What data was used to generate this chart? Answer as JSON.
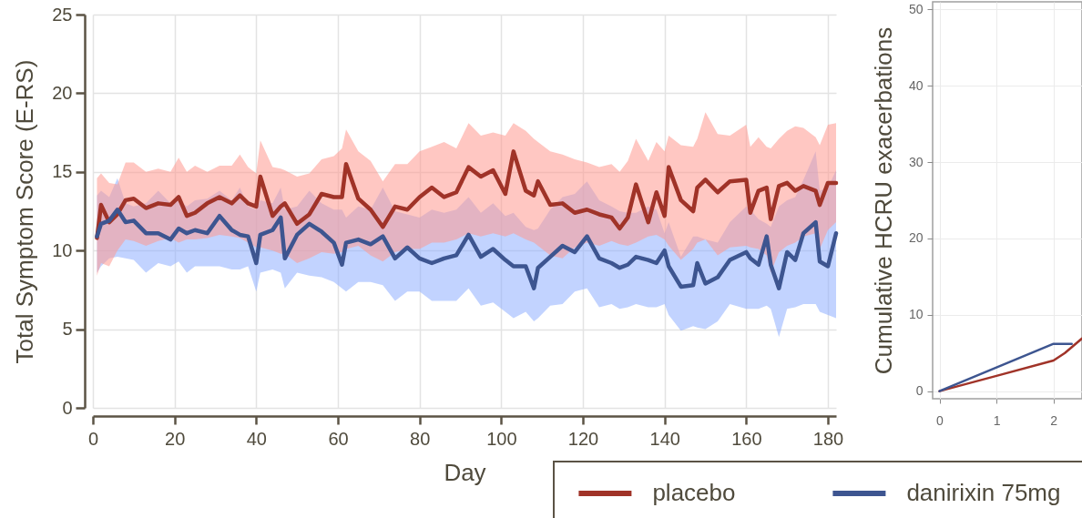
{
  "chart_data": [
    {
      "type": "line",
      "xlabel": "Day",
      "ylabel": "Total Symptom Score (E-RS)",
      "x": [
        1,
        2,
        4,
        6,
        8,
        10,
        13,
        16,
        19,
        21,
        23,
        25,
        28,
        31,
        34,
        36,
        38,
        40,
        41,
        44,
        46,
        47,
        50,
        53,
        56,
        59,
        61,
        62,
        65,
        68,
        71,
        74,
        77,
        80,
        83,
        86,
        89,
        92,
        95,
        98,
        101,
        103,
        106,
        108,
        109,
        112,
        115,
        118,
        121,
        124,
        127,
        129,
        131,
        133,
        136,
        138,
        140,
        141,
        144,
        147,
        148,
        150,
        153,
        156,
        160,
        161,
        163,
        165,
        166,
        168,
        170,
        172,
        174,
        177,
        178,
        180,
        182
      ],
      "series": [
        {
          "name": "placebo",
          "color": "#a03328",
          "values": [
            10.8,
            12.9,
            11.8,
            12.3,
            13.2,
            13.3,
            12.7,
            13.0,
            12.9,
            13.4,
            12.2,
            12.4,
            13.0,
            13.4,
            13.0,
            13.5,
            13.0,
            12.8,
            14.7,
            12.2,
            12.8,
            13.0,
            11.7,
            12.3,
            13.6,
            13.4,
            13.4,
            15.5,
            13.3,
            12.6,
            11.5,
            12.8,
            12.6,
            13.4,
            14.0,
            13.4,
            13.7,
            15.3,
            14.7,
            15.1,
            13.6,
            16.3,
            13.8,
            13.5,
            14.4,
            12.9,
            13.0,
            12.4,
            12.6,
            12.3,
            12.1,
            11.4,
            12.1,
            14.2,
            11.8,
            13.7,
            12.2,
            15.3,
            13.2,
            12.5,
            14.0,
            14.5,
            13.7,
            14.4,
            14.5,
            12.4,
            13.8,
            14.0,
            12.0,
            14.1,
            14.3,
            13.8,
            14.1,
            13.8,
            12.9,
            14.3,
            14.3
          ],
          "lower": [
            8.4,
            9.2,
            9.0,
            10.0,
            10.7,
            10.6,
            10.3,
            10.6,
            10.8,
            10.5,
            10.7,
            10.7,
            10.8,
            11.0,
            10.9,
            10.8,
            10.5,
            10.2,
            10.2,
            10.0,
            9.8,
            9.8,
            9.2,
            9.5,
            9.9,
            9.8,
            9.9,
            10.1,
            10.3,
            9.7,
            9.3,
            9.9,
            10.1,
            10.1,
            10.5,
            10.5,
            10.7,
            11.1,
            10.9,
            11.1,
            10.9,
            11.1,
            10.7,
            10.5,
            10.3,
            9.7,
            9.5,
            10.2,
            10.5,
            10.3,
            10.6,
            10.4,
            10.3,
            10.5,
            10.9,
            11.0,
            10.7,
            10.3,
            9.4,
            10.1,
            10.5,
            10.7,
            9.7,
            10.2,
            10.3,
            10.2,
            10.1,
            9.7,
            8.6,
            9.9,
            10.3,
            10.5,
            10.9,
            11.1,
            10.1,
            11.3,
            11.8
          ],
          "upper": [
            14.6,
            14.9,
            14.3,
            14.2,
            15.6,
            15.6,
            15.0,
            15.2,
            15.0,
            15.9,
            15.0,
            15.4,
            15.0,
            15.4,
            15.4,
            16.1,
            15.3,
            14.9,
            17.0,
            15.3,
            15.2,
            15.1,
            14.7,
            14.9,
            15.8,
            16.0,
            16.5,
            17.7,
            16.3,
            15.7,
            14.4,
            15.5,
            15.5,
            16.3,
            16.6,
            16.9,
            16.5,
            18.1,
            17.3,
            17.5,
            17.3,
            18.1,
            17.6,
            17.1,
            16.9,
            16.3,
            16.1,
            15.8,
            15.6,
            15.3,
            15.5,
            15.0,
            15.7,
            17.1,
            15.7,
            16.9,
            16.3,
            17.3,
            16.7,
            16.6,
            17.1,
            18.8,
            17.4,
            17.3,
            18.0,
            16.6,
            17.2,
            16.6,
            16.5,
            17.1,
            17.6,
            17.9,
            17.8,
            17.2,
            16.7,
            18.0,
            18.1
          ]
        },
        {
          "name": "danirixin 75mg",
          "color": "#3d5590",
          "values": [
            10.9,
            11.7,
            11.9,
            12.6,
            11.8,
            11.9,
            11.1,
            11.1,
            10.7,
            11.4,
            11.1,
            11.3,
            11.1,
            12.2,
            11.3,
            11.0,
            10.9,
            9.2,
            11.0,
            11.3,
            12.1,
            9.5,
            11.0,
            11.7,
            11.2,
            10.5,
            9.1,
            10.5,
            10.7,
            10.4,
            10.9,
            9.5,
            10.2,
            9.5,
            9.2,
            9.5,
            9.7,
            11.0,
            9.6,
            10.1,
            9.4,
            9.0,
            9.0,
            7.6,
            8.9,
            9.6,
            10.3,
            9.9,
            10.9,
            9.5,
            9.2,
            8.9,
            9.1,
            9.6,
            9.4,
            9.2,
            10.0,
            9.0,
            7.7,
            7.8,
            9.2,
            7.9,
            8.3,
            9.4,
            9.9,
            9.5,
            9.1,
            10.9,
            9.1,
            7.6,
            9.9,
            9.4,
            11.1,
            11.8,
            9.3,
            9.0,
            11.1
          ],
          "lower": [
            8.6,
            9.0,
            9.5,
            9.6,
            9.5,
            9.4,
            8.6,
            9.2,
            9.0,
            9.3,
            8.6,
            9.0,
            9.0,
            9.0,
            8.8,
            8.8,
            9.0,
            7.4,
            8.6,
            8.8,
            8.6,
            7.6,
            8.6,
            8.4,
            8.3,
            8.0,
            7.6,
            7.4,
            8.0,
            8.0,
            7.8,
            6.8,
            7.4,
            7.4,
            6.8,
            6.8,
            6.8,
            7.6,
            6.5,
            6.7,
            6.1,
            5.7,
            6.1,
            5.5,
            5.7,
            6.5,
            6.6,
            7.4,
            7.6,
            6.4,
            6.6,
            6.3,
            6.4,
            6.6,
            6.4,
            6.4,
            6.6,
            5.9,
            4.9,
            5.2,
            5.1,
            5.0,
            5.5,
            6.6,
            6.3,
            6.3,
            6.3,
            6.5,
            6.3,
            4.5,
            6.3,
            6.4,
            6.6,
            6.6,
            6.1,
            5.9,
            5.7
          ],
          "upper": [
            13.5,
            13.8,
            13.4,
            14.6,
            13.0,
            12.8,
            13.0,
            13.8,
            13.0,
            13.2,
            12.8,
            13.2,
            13.3,
            13.8,
            13.2,
            14.0,
            12.8,
            12.6,
            13.2,
            13.0,
            14.0,
            12.6,
            12.8,
            13.8,
            13.0,
            12.6,
            12.6,
            12.1,
            12.8,
            12.6,
            14.0,
            12.5,
            12.3,
            12.1,
            12.6,
            12.4,
            12.6,
            13.4,
            12.4,
            13.0,
            12.2,
            12.4,
            11.5,
            11.3,
            11.4,
            12.6,
            13.4,
            13.6,
            14.4,
            13.2,
            12.8,
            12.5,
            12.4,
            12.4,
            12.8,
            12.6,
            11.1,
            11.8,
            9.6,
            10.9,
            10.9,
            10.7,
            10.5,
            11.8,
            12.8,
            12.6,
            12.0,
            11.7,
            11.5,
            12.8,
            13.2,
            13.4,
            14.5,
            16.3,
            13.8,
            14.0,
            15.1
          ]
        }
      ],
      "xlim": [
        0,
        182
      ],
      "xticks": [
        0,
        20,
        40,
        60,
        80,
        100,
        120,
        140,
        160,
        180
      ],
      "ylim": [
        0,
        25
      ],
      "yticks": [
        0,
        5,
        10,
        15,
        20,
        25
      ],
      "grid": true,
      "legend": "bottom right"
    },
    {
      "type": "line",
      "ylabel": "Cumulative HCRU exacerbations",
      "series": [
        {
          "color": "#a03328",
          "x": [
            0,
            1,
            2,
            2.2,
            2.5
          ],
          "values": [
            0,
            2.0,
            4.0,
            5.0,
            6.9
          ]
        },
        {
          "color": "#3d5590",
          "x": [
            0,
            1,
            2,
            2.32
          ],
          "values": [
            0,
            3.1,
            6.2,
            6.2
          ]
        }
      ],
      "xlim": [
        -0.12,
        2.5
      ],
      "xticks": [
        0,
        1,
        2
      ],
      "ylim": [
        -1,
        51
      ],
      "yticks": [
        0,
        10,
        20,
        30,
        40,
        50
      ],
      "grid": true
    }
  ]
}
